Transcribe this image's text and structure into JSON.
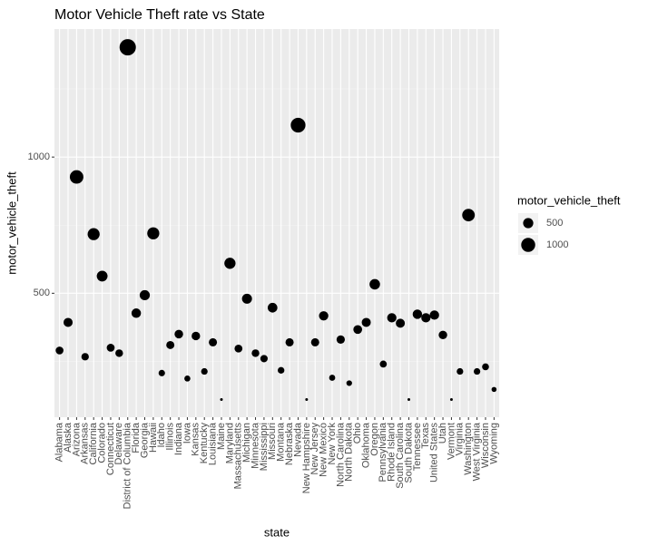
{
  "chart_data": {
    "type": "scatter",
    "title": "Motor Vehicle Theft rate vs State",
    "x_label": "state",
    "y_label": "motor_vehicle_theft",
    "categories": [
      "Alabama",
      "Alaska",
      "Arizona",
      "Arkansas",
      "California",
      "Colorado",
      "Connecticut",
      "Delaware",
      "District of Columbia",
      "Florida",
      "Georgia",
      "Hawaii",
      "Idaho",
      "Illinois",
      "Indiana",
      "Iowa",
      "Kansas",
      "Kentucky",
      "Louisiana",
      "Maine",
      "Maryland",
      "Massachusetts",
      "Michigan",
      "Minnesota",
      "Mississippi",
      "Missouri",
      "Montana",
      "Nebraska",
      "Nevada",
      "New Hampshire",
      "New Jersey",
      "New Mexico",
      "New York",
      "North Carolina",
      "North Dakota",
      "Ohio",
      "Oklahoma",
      "Oregon",
      "Pennsylvania",
      "Rhode Island",
      "South Carolina",
      "South Dakota",
      "Tennessee",
      "Texas",
      "United States",
      "Utah",
      "Vermont",
      "Virginia",
      "Washington",
      "West Virginia",
      "Wisconsin",
      "Wyoming"
    ],
    "values": [
      290,
      393,
      927,
      267,
      717,
      563,
      300,
      280,
      1403,
      427,
      493,
      720,
      207,
      310,
      350,
      187,
      343,
      213,
      320,
      110,
      610,
      297,
      480,
      280,
      260,
      447,
      217,
      320,
      1117,
      110,
      320,
      417,
      190,
      330,
      170,
      367,
      393,
      533,
      240,
      410,
      390,
      110,
      423,
      410,
      420,
      347,
      110,
      213,
      787,
      213,
      230,
      147
    ],
    "color": "#000000",
    "ylim": [
      45,
      1470
    ],
    "yticks": [
      500,
      1000
    ],
    "grid": true,
    "size_legend": {
      "title": "motor_vehicle_theft",
      "breaks": [
        500,
        1000
      ]
    }
  }
}
